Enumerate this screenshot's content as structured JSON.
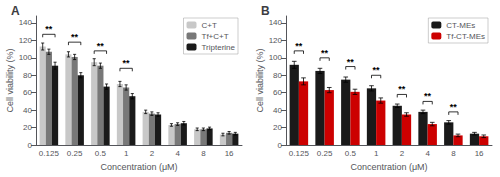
{
  "chart_data": [
    {
      "type": "bar",
      "title": "A",
      "xlabel": "Concentration (μM)",
      "ylabel": "Cell viability (%)",
      "categories": [
        "0.125",
        "0.25",
        "0.5",
        "1",
        "2",
        "4",
        "8",
        "16"
      ],
      "series": [
        {
          "name": "C+T",
          "color": "#c8c8c8",
          "values": [
            113,
            104,
            95,
            70,
            38,
            23,
            18,
            12
          ],
          "errors": [
            4,
            3,
            4,
            3,
            2,
            1.5,
            1.5,
            1.5
          ]
        },
        {
          "name": "Tf+C+T",
          "color": "#787878",
          "values": [
            107,
            101,
            91,
            66,
            36,
            24,
            18,
            14
          ],
          "errors": [
            3,
            3,
            3,
            3,
            2,
            1.5,
            1.5,
            1.5
          ]
        },
        {
          "name": "Tripterine",
          "color": "#1a1a1a",
          "values": [
            91,
            80,
            67,
            56,
            35,
            25,
            19,
            13
          ],
          "errors": [
            4,
            3,
            3,
            3,
            2,
            2,
            1.5,
            1.5
          ]
        }
      ],
      "annotations": [
        {
          "category": "0.125",
          "y": 127,
          "label": "**"
        },
        {
          "category": "0.25",
          "y": 118,
          "label": "**"
        },
        {
          "category": "0.5",
          "y": 108,
          "label": "**"
        },
        {
          "category": "1",
          "y": 88,
          "label": "**"
        }
      ],
      "ylim": [
        0,
        148
      ],
      "yticks": [
        0,
        20,
        40,
        60,
        80,
        100,
        120,
        140
      ],
      "grid": false,
      "legend": "upper right"
    },
    {
      "type": "bar",
      "title": "B",
      "xlabel": "Concentration (μM)",
      "ylabel": "Cell viability (%)",
      "categories": [
        "0.125",
        "0.25",
        "0.5",
        "1",
        "2",
        "4",
        "8",
        "16"
      ],
      "series": [
        {
          "name": "CT-MEs",
          "color": "#1a1a1a",
          "values": [
            92,
            85,
            75,
            65,
            45,
            38,
            26,
            13
          ],
          "errors": [
            4,
            3,
            3,
            3,
            2,
            2,
            2,
            1.5
          ]
        },
        {
          "name": "Tf-CT-MEs",
          "color": "#cc0000",
          "values": [
            73,
            63,
            61,
            51,
            35,
            24,
            11,
            10
          ],
          "errors": [
            4,
            3,
            3,
            3,
            2,
            2,
            1.5,
            1.5
          ]
        }
      ],
      "annotations": [
        {
          "category": "0.125",
          "y": 108,
          "label": "**"
        },
        {
          "category": "0.25",
          "y": 100,
          "label": "**"
        },
        {
          "category": "0.5",
          "y": 90,
          "label": "**"
        },
        {
          "category": "1",
          "y": 80,
          "label": "**"
        },
        {
          "category": "2",
          "y": 58,
          "label": "**"
        },
        {
          "category": "4",
          "y": 50,
          "label": "**"
        },
        {
          "category": "8",
          "y": 38,
          "label": "**"
        }
      ],
      "ylim": [
        0,
        148
      ],
      "yticks": [
        0,
        20,
        40,
        60,
        80,
        100,
        120,
        140
      ],
      "grid": false,
      "legend": "upper right"
    }
  ]
}
